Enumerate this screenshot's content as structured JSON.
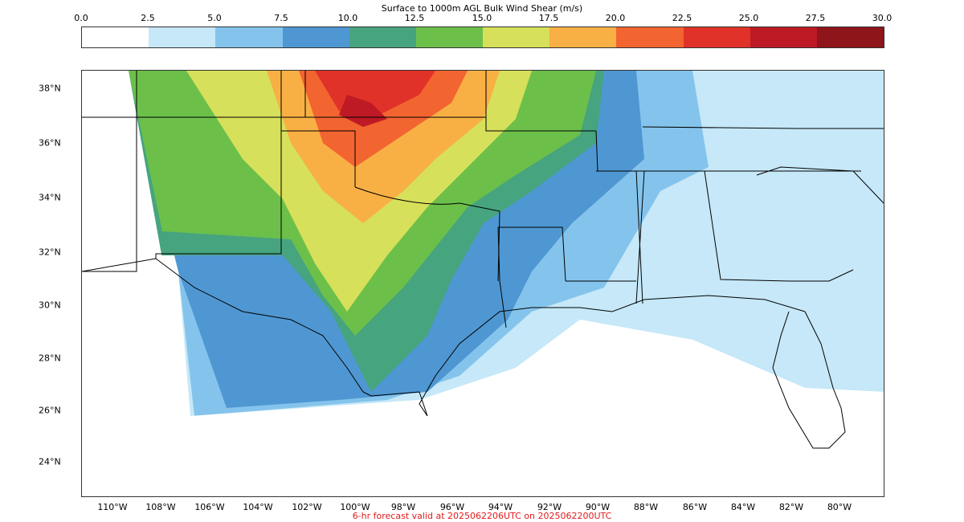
{
  "colorbar": {
    "title": "Surface to 1000m AGL Bulk Wind Shear (m/s)",
    "ticks": [
      "0.0",
      "2.5",
      "5.0",
      "7.5",
      "10.0",
      "12.5",
      "15.0",
      "17.5",
      "20.0",
      "22.5",
      "25.0",
      "27.5",
      "30.0"
    ],
    "colors": [
      "#ffffff",
      "#c6e8f8",
      "#84c4ec",
      "#4f97d2",
      "#46a47f",
      "#6cc04a",
      "#d7e05a",
      "#f8b045",
      "#f26430",
      "#e03228",
      "#bd1a25",
      "#8e1519"
    ]
  },
  "map": {
    "lat_labels": [
      "38°N",
      "36°N",
      "34°N",
      "32°N",
      "30°N",
      "28°N",
      "26°N",
      "24°N"
    ],
    "lon_labels": [
      "110°W",
      "108°W",
      "106°W",
      "104°W",
      "102°W",
      "100°W",
      "98°W",
      "96°W",
      "94°W",
      "92°W",
      "90°W",
      "88°W",
      "86°W",
      "84°W",
      "82°W",
      "80°W"
    ]
  },
  "footer": {
    "forecast_note": "6-hr forecast valid at 2025062206UTC on 2025062200UTC"
  }
}
